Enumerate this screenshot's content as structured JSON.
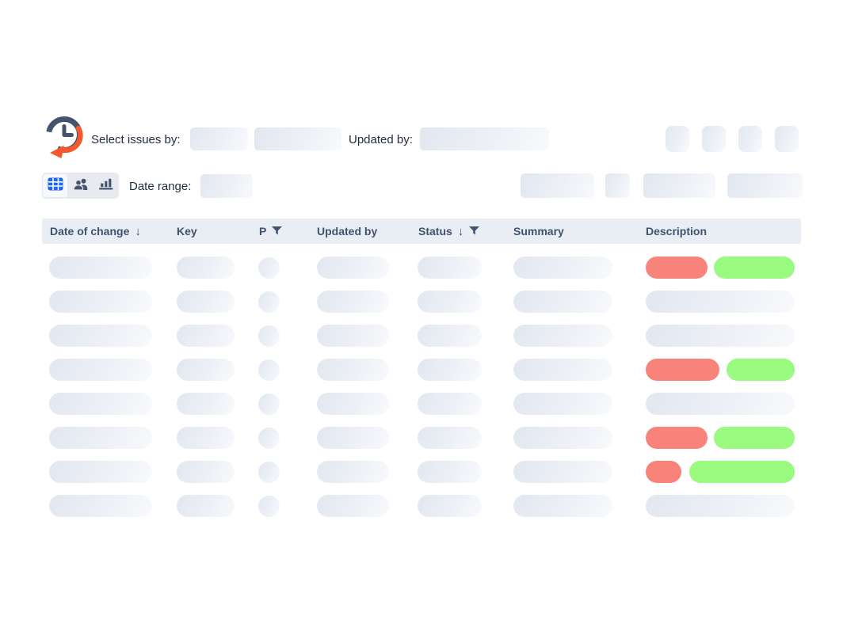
{
  "filters": {
    "select_issues_by_label": "Select issues by:",
    "updated_by_label": "Updated by:",
    "date_range_label": "Date range:"
  },
  "icons": {
    "logo": "clock-history-logo",
    "sort_desc_glyph": "↓",
    "view_toggles": [
      "table-grid-icon",
      "users-icon",
      "bar-chart-icon"
    ]
  },
  "colors": {
    "accent_blue": "#2166f0",
    "slate": "#44546f",
    "logo_orange": "#f4582c",
    "removed_red": "#f8837a",
    "added_green": "#9afa80",
    "header_bg": "#e9edf4",
    "skeleton_from": "#e2e7f0",
    "skeleton_mid": "#edf0f6",
    "skeleton_to": "#f8fafc",
    "label_text": "#1f2b3f",
    "header_text": "#42526e"
  },
  "table": {
    "columns": [
      {
        "label": "Date of change",
        "sorted": "desc",
        "filter": false
      },
      {
        "label": "Key",
        "filter": false
      },
      {
        "label": "P",
        "filter": true
      },
      {
        "label": "Updated by",
        "filter": false
      },
      {
        "label": "Status",
        "sorted": "desc",
        "filter": true
      },
      {
        "label": "Summary",
        "filter": false
      },
      {
        "label": "Description",
        "filter": false
      }
    ],
    "rows": [
      {
        "description": {
          "type": "diff",
          "removed_width": 78,
          "added_width": 102
        }
      },
      {
        "description": {
          "type": "full"
        }
      },
      {
        "description": {
          "type": "full"
        }
      },
      {
        "description": {
          "type": "diff",
          "removed_width": 93,
          "added_width": 86
        }
      },
      {
        "description": {
          "type": "full"
        }
      },
      {
        "description": {
          "type": "diff",
          "removed_width": 78,
          "added_width": 102
        }
      },
      {
        "description": {
          "type": "diff",
          "removed_width": 45,
          "added_width": 133
        }
      },
      {
        "description": {
          "type": "full"
        }
      }
    ]
  }
}
